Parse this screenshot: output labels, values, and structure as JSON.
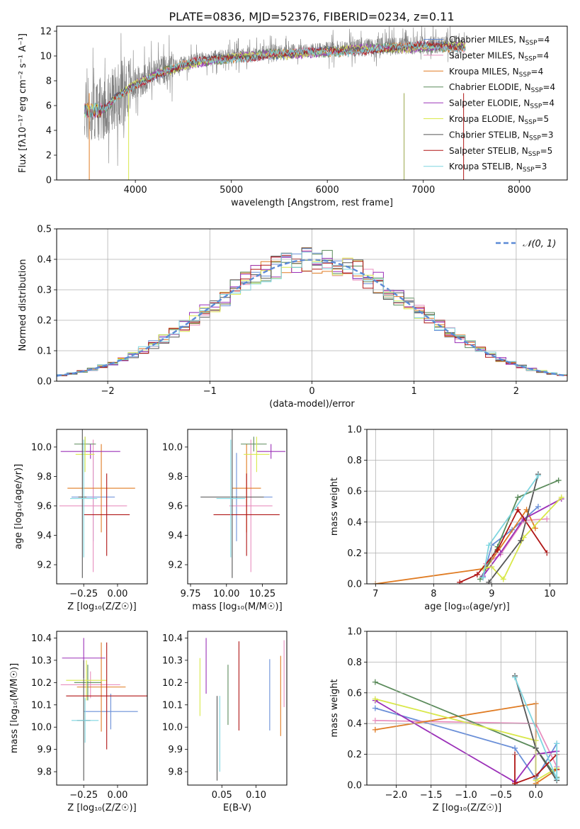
{
  "figure": {
    "title": "PLATE=0836, MJD=52376, FIBERID=0234, z=0.11",
    "models": [
      {
        "label": "Chabrier MILES, N_SSP=4",
        "color": "#6a8fd8"
      },
      {
        "label": "Salpeter MILES, N_SSP=4",
        "color": "#e88fbf"
      },
      {
        "label": "Kroupa MILES, N_SSP=4",
        "color": "#e07b22"
      },
      {
        "label": "Chabrier ELODIE, N_SSP=4",
        "color": "#5a8a5a"
      },
      {
        "label": "Salpeter ELODIE, N_SSP=4",
        "color": "#9b30b8"
      },
      {
        "label": "Kroupa ELODIE, N_SSP=5",
        "color": "#d9e84a"
      },
      {
        "label": "Chabrier STELIB, N_SSP=3",
        "color": "#555555"
      },
      {
        "label": "Salpeter STELIB, N_SSP=5",
        "color": "#b01515"
      },
      {
        "label": "Kroupa STELIB, N_SSP=3",
        "color": "#7fd6e0"
      }
    ]
  },
  "chart_data": [
    {
      "panel": "spectrum",
      "type": "line",
      "xlabel": "wavelength [Angstrom, rest frame]",
      "ylabel": "Flux [f_λ 10^-17 erg cm^-2 s^-1 A^-1]",
      "xlim": [
        3180,
        8500
      ],
      "ylim": [
        0,
        12.4
      ],
      "xticks": [
        "4000",
        "5000",
        "6000",
        "7000",
        "8000"
      ],
      "yticks": [
        "0",
        "2",
        "4",
        "6",
        "8",
        "10",
        "12"
      ],
      "data_color": "#808080",
      "data_anchors_x": [
        3500,
        3600,
        3700,
        3800,
        3900,
        4000,
        4200,
        4400,
        4600,
        4800,
        5000,
        5200,
        5400,
        5600,
        5800,
        6000,
        6200,
        6400,
        6600,
        6800,
        7000,
        7200,
        7400
      ],
      "data_anchors_y": [
        5.5,
        5.6,
        5.9,
        6.8,
        7.3,
        7.8,
        8.6,
        9.1,
        9.6,
        9.8,
        10.0,
        10.1,
        10.3,
        10.3,
        10.4,
        10.5,
        10.6,
        10.7,
        10.8,
        10.8,
        10.9,
        10.9,
        10.9
      ],
      "legend_loc": "upper right"
    },
    {
      "panel": "residuals",
      "type": "step",
      "xlabel": "(data-model)/error",
      "ylabel": "Normed distribution",
      "xlim": [
        -2.5,
        2.5
      ],
      "ylim": [
        0,
        0.5
      ],
      "xticks": [
        "−2",
        "−1",
        "0",
        "1",
        "2"
      ],
      "yticks": [
        "0.0",
        "0.1",
        "0.2",
        "0.3",
        "0.4",
        "0.5"
      ],
      "bin_width": 0.1,
      "legend": "𝒩(0, 1)",
      "grid": true
    },
    {
      "panel": "age_vs_Z",
      "type": "errorbar",
      "xlabel": "Z [log10(Z/Z☉)]",
      "ylabel": "age  [log10(age/yr)]",
      "xlim": [
        -0.45,
        0.22
      ],
      "ylim": [
        9.07,
        10.12
      ],
      "xticks": [
        "−0.25",
        "0.00"
      ],
      "yticks": [
        "9.2",
        "9.4",
        "9.6",
        "9.8",
        "10.0"
      ],
      "points": [
        {
          "x": -0.18,
          "xerr": 0.16,
          "y": 9.66,
          "yerr": 0.3
        },
        {
          "x": -0.18,
          "xerr": 0.25,
          "y": 9.6,
          "yerr": 0.45
        },
        {
          "x": -0.12,
          "xerr": 0.25,
          "y": 9.72,
          "yerr": 0.3
        },
        {
          "x": -0.24,
          "xerr": 0.08,
          "y": 10.02,
          "yerr": 0.05
        },
        {
          "x": -0.2,
          "xerr": 0.22,
          "y": 9.97,
          "yerr": 0.05
        },
        {
          "x": -0.24,
          "xerr": 0.07,
          "y": 9.95,
          "yerr": 0.12
        },
        {
          "x": -0.26,
          "xerr": 0.03,
          "y": 9.66,
          "yerr": 0.55
        },
        {
          "x": -0.08,
          "xerr": 0.17,
          "y": 9.54,
          "yerr": 0.28
        },
        {
          "x": -0.25,
          "xerr": 0.1,
          "y": 9.65,
          "yerr": 0.4
        }
      ]
    },
    {
      "panel": "age_vs_mass",
      "type": "errorbar",
      "xlabel": "mass [log10(M/M☉)]",
      "ylabel": "",
      "xlim": [
        9.73,
        10.42
      ],
      "ylim": [
        9.07,
        10.12
      ],
      "xticks": [
        "9.75",
        "10.00",
        "10.25"
      ],
      "yticks": [
        "9.2",
        "9.4",
        "9.6",
        "9.8",
        "10.0"
      ],
      "points": [
        {
          "x": 10.07,
          "xerr": 0.25,
          "y": 9.66,
          "yerr": 0.3
        },
        {
          "x": 10.17,
          "xerr": 0.15,
          "y": 9.6,
          "yerr": 0.45
        },
        {
          "x": 10.14,
          "xerr": 0.1,
          "y": 9.72,
          "yerr": 0.3
        },
        {
          "x": 10.19,
          "xerr": 0.09,
          "y": 10.02,
          "yerr": 0.05
        },
        {
          "x": 10.31,
          "xerr": 0.1,
          "y": 9.97,
          "yerr": 0.05
        },
        {
          "x": 10.21,
          "xerr": 0.09,
          "y": 9.95,
          "yerr": 0.12
        },
        {
          "x": 10.04,
          "xerr": 0.22,
          "y": 9.66,
          "yerr": 0.55
        },
        {
          "x": 10.14,
          "xerr": 0.23,
          "y": 9.54,
          "yerr": 0.28
        },
        {
          "x": 10.03,
          "xerr": 0.1,
          "y": 9.65,
          "yerr": 0.4
        }
      ]
    },
    {
      "panel": "weight_vs_age",
      "type": "line",
      "xlabel": "age  [log10(age/yr)]",
      "ylabel": "mass weight",
      "xlim": [
        6.85,
        10.3
      ],
      "ylim": [
        0,
        1.0
      ],
      "xticks": [
        "7",
        "8",
        "9",
        "10"
      ],
      "yticks": [
        "0.0",
        "0.2",
        "0.4",
        "0.6",
        "0.8",
        "1.0"
      ],
      "grid": true,
      "series": [
        {
          "x": [
            8.85,
            9.0,
            9.35,
            9.8
          ],
          "y": [
            0.04,
            0.25,
            0.35,
            0.5
          ]
        },
        {
          "x": [
            8.9,
            9.15,
            9.55,
            9.95
          ],
          "y": [
            0.13,
            0.19,
            0.41,
            0.42
          ]
        },
        {
          "x": [
            7.0,
            8.9,
            9.6,
            9.75
          ],
          "y": [
            0.0,
            0.1,
            0.48,
            0.36
          ]
        },
        {
          "x": [
            8.8,
            9.1,
            9.45,
            10.15
          ],
          "y": [
            0.03,
            0.24,
            0.56,
            0.67
          ]
        },
        {
          "x": [
            8.85,
            9.15,
            9.55,
            10.2
          ],
          "y": [
            0.05,
            0.2,
            0.42,
            0.55
          ]
        },
        {
          "x": [
            8.85,
            9.0,
            9.2,
            9.55,
            10.2
          ],
          "y": [
            0.1,
            0.11,
            0.03,
            0.3,
            0.56
          ]
        },
        {
          "x": [
            8.95,
            9.5,
            9.8
          ],
          "y": [
            0.01,
            0.28,
            0.71
          ]
        },
        {
          "x": [
            8.45,
            8.75,
            9.1,
            9.45,
            9.95
          ],
          "y": [
            0.01,
            0.06,
            0.22,
            0.48,
            0.2
          ]
        },
        {
          "x": [
            8.85,
            8.95,
            9.8
          ],
          "y": [
            0.04,
            0.25,
            0.7
          ]
        }
      ]
    },
    {
      "panel": "mass_vs_Z",
      "type": "errorbar",
      "xlabel": "Z [log10(Z/Z☉)]",
      "ylabel": "mass [log10(M/M☉)]",
      "xlim": [
        -0.45,
        0.22
      ],
      "ylim": [
        9.74,
        10.43
      ],
      "xticks": [
        "−0.25",
        "0.00"
      ],
      "yticks": [
        "9.8",
        "9.9",
        "10.0",
        "10.1",
        "10.2",
        "10.3",
        "10.4"
      ],
      "points": [
        {
          "x": -0.05,
          "xerr": 0.2,
          "y": 10.07,
          "yerr": 0.08
        },
        {
          "x": -0.2,
          "xerr": 0.22,
          "y": 10.19,
          "yerr": 0.06
        },
        {
          "x": -0.12,
          "xerr": 0.18,
          "y": 10.18,
          "yerr": 0.2
        },
        {
          "x": -0.22,
          "xerr": 0.1,
          "y": 10.2,
          "yerr": 0.08
        },
        {
          "x": -0.25,
          "xerr": 0.16,
          "y": 10.31,
          "yerr": 0.09
        },
        {
          "x": -0.23,
          "xerr": 0.15,
          "y": 10.21,
          "yerr": 0.09
        },
        {
          "x": -0.25,
          "xerr": 0.05,
          "y": 10.03,
          "yerr": 0.27
        },
        {
          "x": -0.08,
          "xerr": 0.3,
          "y": 10.14,
          "yerr": 0.24
        },
        {
          "x": -0.24,
          "xerr": 0.1,
          "y": 10.03,
          "yerr": 0.1
        }
      ]
    },
    {
      "panel": "mass_vs_EBV",
      "type": "errorbar",
      "xlabel": "E(B-V)",
      "ylabel": "",
      "xlim": [
        0.0,
        0.145
      ],
      "ylim": [
        9.74,
        10.43
      ],
      "xticks": [
        "0.05",
        "0.10"
      ],
      "yticks": [
        "9.8",
        "9.9",
        "10.0",
        "10.1",
        "10.2",
        "10.3",
        "10.4"
      ],
      "points": [
        {
          "x": 0.12,
          "y": 10.145,
          "yerr": 0.16
        },
        {
          "x": 0.141,
          "y": 10.24,
          "yerr": 0.15
        },
        {
          "x": 0.136,
          "y": 10.14,
          "yerr": 0.18
        },
        {
          "x": 0.059,
          "y": 10.145,
          "yerr": 0.135
        },
        {
          "x": 0.027,
          "y": 10.275,
          "yerr": 0.125
        },
        {
          "x": 0.018,
          "y": 10.18,
          "yerr": 0.13
        },
        {
          "x": 0.043,
          "y": 9.95,
          "yerr": 0.19
        },
        {
          "x": 0.075,
          "y": 10.185,
          "yerr": 0.2
        },
        {
          "x": 0.047,
          "y": 9.97,
          "yerr": 0.17
        }
      ]
    },
    {
      "panel": "weight_vs_Z",
      "type": "line",
      "xlabel": "Z [log10(Z/Z☉)]",
      "ylabel": "mass weight",
      "xlim": [
        -2.42,
        0.45
      ],
      "ylim": [
        0,
        1.0
      ],
      "xticks": [
        "−2.0",
        "−1.5",
        "−1.0",
        "−0.5",
        "0.0"
      ],
      "yticks": [
        "0.0",
        "0.2",
        "0.4",
        "0.6",
        "0.8",
        "1.0"
      ],
      "grid": true,
      "series": [
        {
          "x": [
            -2.3,
            -0.3,
            0.0,
            0.3
          ],
          "y": [
            0.5,
            0.24,
            0.04,
            0.27
          ]
        },
        {
          "x": [
            -2.3,
            0.0,
            0.3
          ],
          "y": [
            0.42,
            0.4,
            0.12
          ]
        },
        {
          "x": [
            -2.3,
            0.0,
            0.0,
            0.3
          ],
          "y": [
            0.36,
            0.53,
            0.01,
            0.1
          ]
        },
        {
          "x": [
            -2.3,
            0.0,
            0.3
          ],
          "y": [
            0.67,
            0.24,
            0.05
          ]
        },
        {
          "x": [
            -2.3,
            -0.3,
            0.0,
            0.3
          ],
          "y": [
            0.55,
            0.02,
            0.2,
            0.22
          ]
        },
        {
          "x": [
            -2.3,
            0.0,
            0.0,
            0.3
          ],
          "y": [
            0.56,
            0.29,
            0.03,
            0.11
          ]
        },
        {
          "x": [
            -0.3,
            0.0,
            0.3
          ],
          "y": [
            0.71,
            0.24,
            0.03
          ]
        },
        {
          "x": [
            -0.3,
            -0.3,
            0.0,
            0.3,
            0.3
          ],
          "y": [
            0.2,
            0.01,
            0.06,
            0.2,
            0.1
          ]
        },
        {
          "x": [
            -0.3,
            0.3,
            0.3
          ],
          "y": [
            0.7,
            0.04,
            0.27
          ]
        }
      ]
    }
  ]
}
